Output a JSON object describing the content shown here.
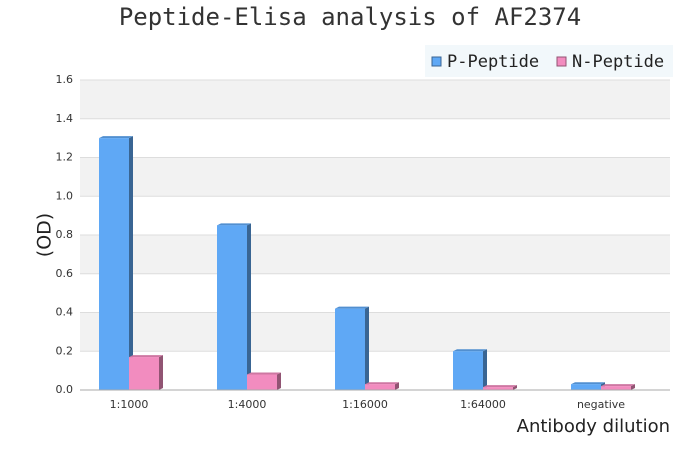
{
  "chart_data": {
    "type": "bar",
    "title": "Peptide-Elisa analysis of AF2374",
    "y_label": "(OD)",
    "x_label": "Antibody dilution",
    "categories": [
      "1:1000",
      "1:4000",
      "1:16000",
      "1:64000",
      "negative"
    ],
    "series": [
      {
        "name": "P-Peptide",
        "color": "#5fa8f5",
        "values": [
          1.3,
          0.85,
          0.42,
          0.2,
          0.03
        ]
      },
      {
        "name": "N-Peptide",
        "color": "#f28cbf",
        "values": [
          0.17,
          0.08,
          0.03,
          0.015,
          0.02
        ]
      }
    ],
    "ylim": [
      0,
      1.6
    ],
    "yticks": [
      {
        "value": 0,
        "label": "0.0"
      },
      0.2,
      0.4,
      0.6,
      0.8,
      {
        "value": 1,
        "label": "1.0"
      },
      1.2,
      1.4,
      1.6
    ],
    "grid": true,
    "legend": "top-right"
  }
}
